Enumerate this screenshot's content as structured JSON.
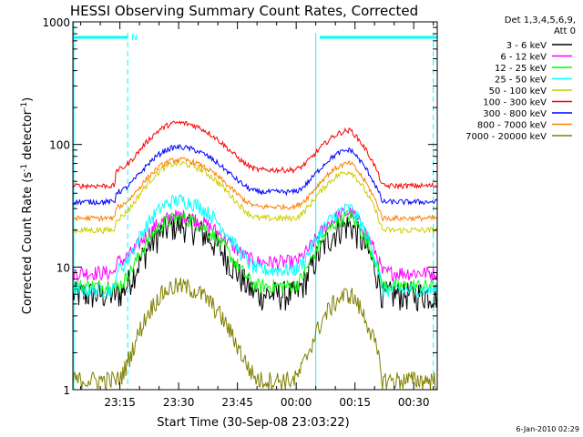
{
  "chart_data": {
    "type": "line",
    "title": "HESSI Observing Summary Count Rates, Corrected",
    "xlabel": "Start Time (30-Sep-08 23:03:22)",
    "ylabel_main": "Corrected Count Rate (s",
    "ylabel_sup1": "-1",
    "ylabel_mid": " detector",
    "ylabel_sup2": "-1",
    "ylabel_end": ")",
    "yscale": "log",
    "ylim": [
      1,
      1000
    ],
    "xlim_minutes": [
      0,
      93
    ],
    "x_ticks": [
      {
        "minute": 12,
        "label": "23:15"
      },
      {
        "minute": 27,
        "label": "23:30"
      },
      {
        "minute": 42,
        "label": "23:45"
      },
      {
        "minute": 57,
        "label": "00:00"
      },
      {
        "minute": 72,
        "label": "00:15"
      },
      {
        "minute": 87,
        "label": "00:30"
      }
    ],
    "y_ticks": [
      {
        "value": 1,
        "label": "1"
      },
      {
        "value": 10,
        "label": "10"
      },
      {
        "value": 100,
        "label": "100"
      },
      {
        "value": 1000,
        "label": "1000"
      }
    ],
    "legend_header": [
      "Det 1,3,4,5,6,9,",
      "Att 0"
    ],
    "series": [
      {
        "name": "3 - 6 keV",
        "color": "#000000",
        "level": [
          6,
          22,
          6,
          22,
          6
        ],
        "jitter": 0.28
      },
      {
        "name": "6 - 12 keV",
        "color": "#ff00ff",
        "level": [
          9,
          26,
          11,
          28,
          9
        ],
        "jitter": 0.14
      },
      {
        "name": "12 - 25 keV",
        "color": "#00ff00",
        "level": [
          7,
          25,
          7,
          26,
          7
        ],
        "jitter": 0.14
      },
      {
        "name": "25 - 50 keV",
        "color": "#00ffff",
        "level": [
          6.5,
          35,
          9.5,
          30,
          6.5
        ],
        "jitter": 0.14
      },
      {
        "name": "50 - 100 keV",
        "color": "#cccc00",
        "level": [
          20,
          70,
          25,
          60,
          20
        ],
        "jitter": 0.06
      },
      {
        "name": "100 - 300 keV",
        "color": "#ff0000",
        "level": [
          46,
          150,
          62,
          130,
          46
        ],
        "jitter": 0.05
      },
      {
        "name": "300 - 800 keV",
        "color": "#0000ff",
        "level": [
          34,
          95,
          41,
          90,
          34
        ],
        "jitter": 0.05
      },
      {
        "name": "800 - 7000 keV",
        "color": "#ff8000",
        "level": [
          25,
          75,
          31,
          70,
          25
        ],
        "jitter": 0.05
      },
      {
        "name": "7000 - 20000 keV",
        "color": "#808000",
        "level": [
          1.2,
          7,
          1.2,
          6,
          1.2
        ],
        "jitter": 0.18
      }
    ],
    "annotations": {
      "flag_label": "N",
      "night_spans": [
        [
          0,
          14
        ],
        [
          63,
          93
        ]
      ],
      "saa_lines": [
        14,
        62,
        92
      ]
    },
    "footer": "6-Jan-2010 02:29"
  }
}
